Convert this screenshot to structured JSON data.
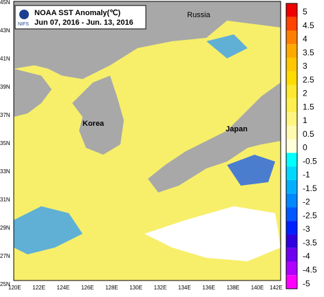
{
  "header": {
    "title": "NOAA SST Anomaly(℃)",
    "period": "Jun 07, 2016 - Jun. 13, 2016",
    "agency": "NIFS"
  },
  "places": [
    "Russia",
    "Korea",
    "Japan"
  ],
  "latitude_labels": [
    "45N",
    "43N",
    "41N",
    "39N",
    "37N",
    "35N",
    "33N",
    "31N",
    "29N",
    "27N",
    "25N"
  ],
  "longitude_labels": [
    "120E",
    "122E",
    "124E",
    "126E",
    "128E",
    "130E",
    "132E",
    "134E",
    "136E",
    "138E",
    "140E",
    "142E"
  ],
  "colorbar": {
    "levels": [
      5,
      4.5,
      4,
      3.5,
      3,
      2.5,
      2,
      1.5,
      1,
      0.5,
      0,
      -0.5,
      -1,
      -1.5,
      -2,
      -2.5,
      -3,
      -3.5,
      -4,
      -4.5,
      -5
    ],
    "colors": [
      "#f00000",
      "#ff4400",
      "#ff8000",
      "#ffaa00",
      "#ffc800",
      "#ffdc00",
      "#ffe830",
      "#fff050",
      "#fff580",
      "#fffab0",
      "#ffffdc",
      "#00ffff",
      "#00d8ff",
      "#00b0ff",
      "#0088ff",
      "#0058ff",
      "#0020ff",
      "#3000e0",
      "#7000f0",
      "#b000ff",
      "#ff00ff"
    ]
  }
}
